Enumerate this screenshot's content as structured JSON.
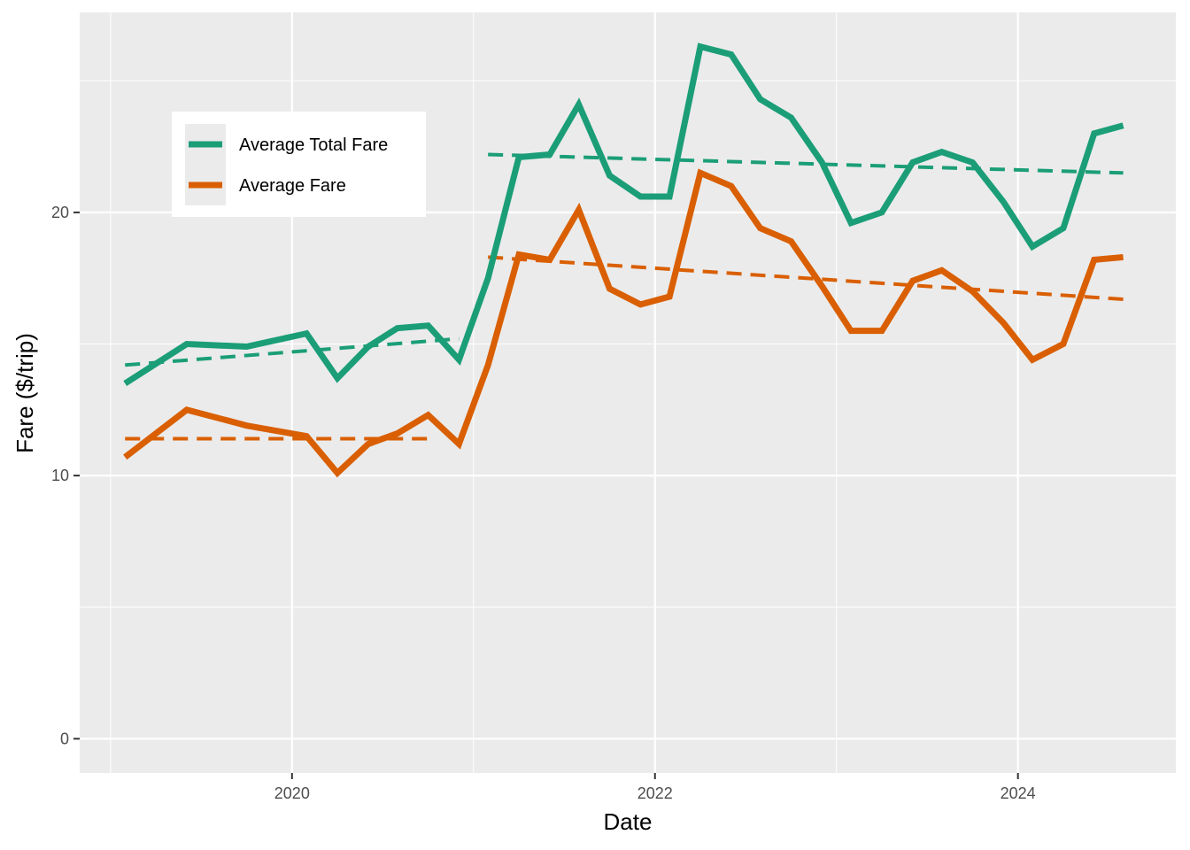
{
  "chart_data": {
    "type": "line",
    "xlabel": "Date",
    "ylabel": "Fare ($/trip)",
    "x_ticks": [
      {
        "value": 2020.0,
        "label": "2020"
      },
      {
        "value": 2022.0,
        "label": "2022"
      },
      {
        "value": 2024.0,
        "label": "2024"
      }
    ],
    "y_ticks": [
      {
        "value": 0,
        "label": "0"
      },
      {
        "value": 10,
        "label": "10"
      },
      {
        "value": 20,
        "label": "20"
      }
    ],
    "xlim": [
      2018.83,
      2024.87
    ],
    "ylim": [
      -1.3,
      27.6
    ],
    "grid": true,
    "legend_position": "top-left",
    "series": [
      {
        "name": "Average Total Fare",
        "color": "#1b9e77",
        "x": [
          2019.08,
          2019.42,
          2019.75,
          2020.08,
          2020.25,
          2020.42,
          2020.58,
          2020.75,
          2020.92,
          2021.08,
          2021.25,
          2021.42,
          2021.58,
          2021.75,
          2021.92,
          2022.08,
          2022.25,
          2022.42,
          2022.58,
          2022.75,
          2022.92,
          2023.08,
          2023.25,
          2023.42,
          2023.58,
          2023.75,
          2023.92,
          2024.08,
          2024.25,
          2024.42,
          2024.58
        ],
        "values": [
          13.5,
          15.0,
          14.9,
          15.4,
          13.7,
          14.9,
          15.6,
          15.7,
          14.4,
          17.5,
          22.1,
          22.2,
          24.1,
          21.4,
          20.6,
          20.6,
          26.3,
          26.0,
          24.3,
          23.6,
          21.9,
          19.6,
          20.0,
          21.9,
          22.3,
          21.9,
          20.4,
          18.7,
          19.4,
          23.0,
          23.3
        ]
      },
      {
        "name": "Average Fare",
        "color": "#d95f02",
        "x": [
          2019.08,
          2019.42,
          2019.75,
          2020.08,
          2020.25,
          2020.42,
          2020.58,
          2020.75,
          2020.92,
          2021.08,
          2021.25,
          2021.42,
          2021.58,
          2021.75,
          2021.92,
          2022.08,
          2022.25,
          2022.42,
          2022.58,
          2022.75,
          2022.92,
          2023.08,
          2023.25,
          2023.42,
          2023.58,
          2023.75,
          2023.92,
          2024.08,
          2024.25,
          2024.42,
          2024.58
        ],
        "values": [
          10.7,
          12.5,
          11.9,
          11.5,
          10.1,
          11.2,
          11.6,
          12.3,
          11.2,
          14.2,
          18.4,
          18.2,
          20.1,
          17.1,
          16.5,
          16.8,
          21.5,
          21.0,
          19.4,
          18.9,
          17.2,
          15.5,
          15.5,
          17.4,
          17.8,
          17.0,
          15.8,
          14.4,
          15.0,
          18.2,
          18.3
        ]
      }
    ],
    "trend_lines": [
      {
        "series": "Average Total Fare",
        "segment": "pre-2021",
        "x": [
          2019.08,
          2020.92
        ],
        "values": [
          14.2,
          15.2
        ]
      },
      {
        "series": "Average Total Fare",
        "segment": "post-2021",
        "x": [
          2021.08,
          2024.58
        ],
        "values": [
          22.2,
          21.5
        ]
      },
      {
        "series": "Average Fare",
        "segment": "pre-2021",
        "x": [
          2019.08,
          2020.75
        ],
        "values": [
          11.4,
          11.4
        ]
      },
      {
        "series": "Average Fare",
        "segment": "post-2021",
        "x": [
          2021.08,
          2024.58
        ],
        "values": [
          18.3,
          16.7
        ]
      }
    ]
  }
}
